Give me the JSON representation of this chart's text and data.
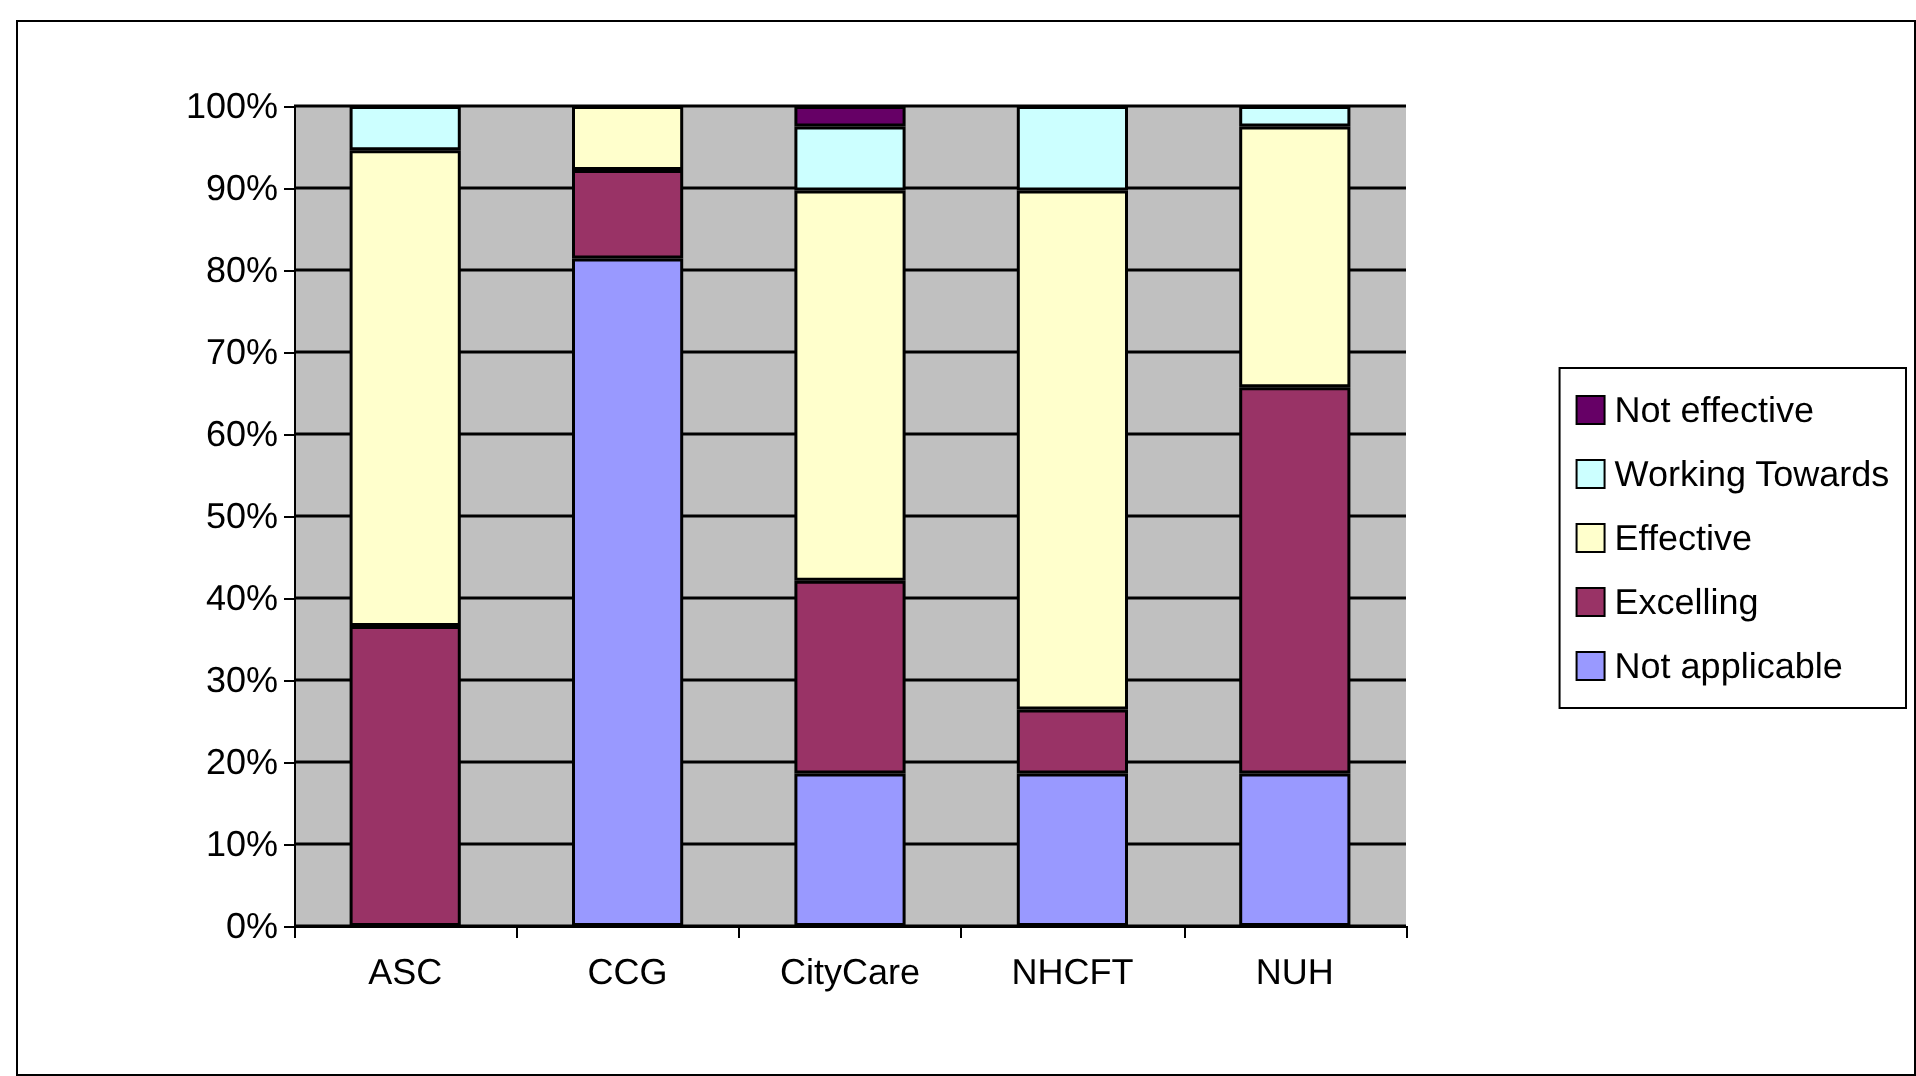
{
  "chart_data": {
    "type": "bar",
    "stacked": true,
    "categories": [
      "ASC",
      "CCG",
      "CityCare",
      "NHCFT",
      "NUH"
    ],
    "series": [
      {
        "name": "Not applicable",
        "color": "#9999ff",
        "values": [
          0,
          81.4,
          18.6,
          18.6,
          18.6
        ]
      },
      {
        "name": "Excelling",
        "color": "#993366",
        "values": [
          36.6,
          10.8,
          23.5,
          7.8,
          47.1
        ]
      },
      {
        "name": "Effective",
        "color": "#ffffcc",
        "values": [
          58,
          7.8,
          47.6,
          63.3,
          31.8
        ]
      },
      {
        "name": "Working Towards",
        "color": "#ccffff",
        "values": [
          5.4,
          0,
          7.8,
          10.3,
          2.5
        ]
      },
      {
        "name": "Not effective",
        "color": "#660066",
        "values": [
          0,
          0,
          2.5,
          0,
          0
        ]
      }
    ],
    "ylim": [
      0,
      100
    ],
    "yticks": [
      {
        "value": 0,
        "label": "0%"
      },
      {
        "value": 10,
        "label": "10%"
      },
      {
        "value": 20,
        "label": "20%"
      },
      {
        "value": 30,
        "label": "30%"
      },
      {
        "value": 40,
        "label": "40%"
      },
      {
        "value": 50,
        "label": "50%"
      },
      {
        "value": 60,
        "label": "60%"
      },
      {
        "value": 70,
        "label": "70%"
      },
      {
        "value": 80,
        "label": "80%"
      },
      {
        "value": 90,
        "label": "90%"
      },
      {
        "value": 100,
        "label": "100%"
      }
    ],
    "grid": "y",
    "legend": "right"
  }
}
